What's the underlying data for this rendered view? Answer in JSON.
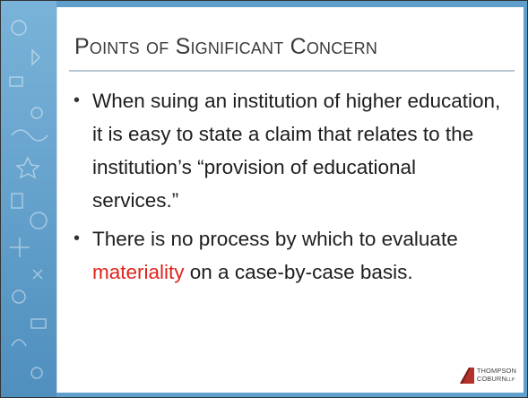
{
  "slide": {
    "title": "Points of Significant Concern",
    "bullets": [
      {
        "parts": [
          "When suing an institution of higher education, it is easy to state a claim that relates to the institution’s “provision of educational services.”"
        ]
      },
      {
        "parts": [
          "There is no process by which to evaluate ",
          "materiality",
          " on a case-by-case basis."
        ]
      }
    ],
    "logo": {
      "line1": "THOMPSON",
      "line2": "COBURN",
      "suffix": "LLP"
    }
  }
}
